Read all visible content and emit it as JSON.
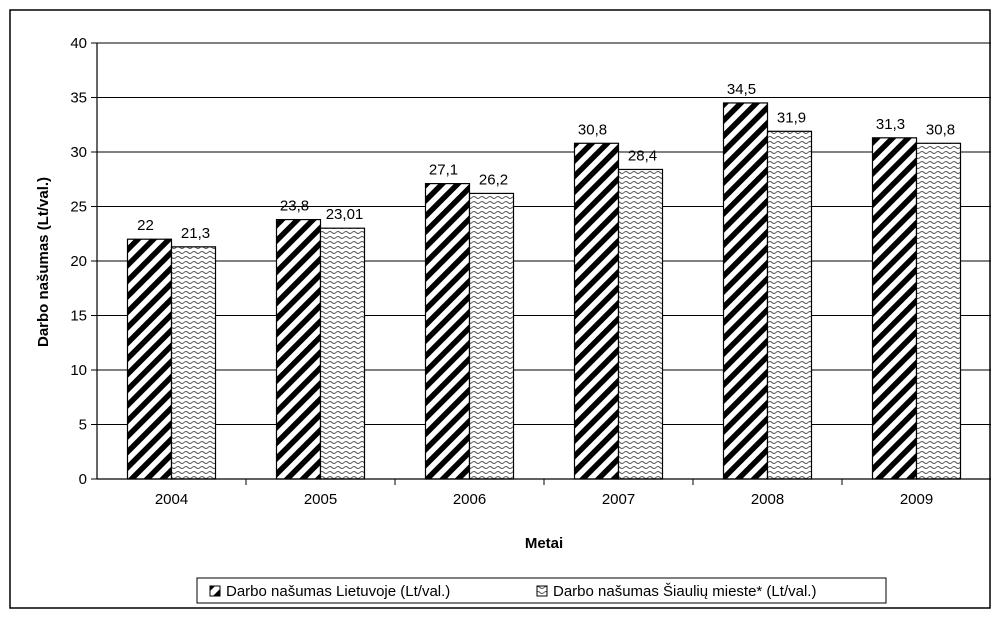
{
  "chart_data": {
    "type": "bar",
    "title": "",
    "xlabel": "Metai",
    "ylabel": "Darbo našumas (Lt/val.)",
    "ylim": [
      0,
      40
    ],
    "yticks": [
      0,
      5,
      10,
      15,
      20,
      25,
      30,
      35,
      40
    ],
    "grid": true,
    "legend_position": "bottom",
    "categories": [
      "2004",
      "2005",
      "2006",
      "2007",
      "2008",
      "2009"
    ],
    "series": [
      {
        "name": "Darbo našumas Lietuvoje (Lt/val.)",
        "values": [
          22,
          23.8,
          27.1,
          30.8,
          34.5,
          31.3
        ],
        "labels": [
          "22",
          "23,8",
          "27,1",
          "30,8",
          "34,5",
          "31,3"
        ],
        "pattern": "diagonal-stripes"
      },
      {
        "name": "Darbo našumas Šiaulių mieste* (Lt/val.)",
        "values": [
          21.3,
          23.01,
          26.2,
          28.4,
          31.9,
          30.8
        ],
        "labels": [
          "21,3",
          "23,01",
          "26,2",
          "28,4",
          "31,9",
          "30,8"
        ],
        "pattern": "wavy"
      }
    ]
  }
}
